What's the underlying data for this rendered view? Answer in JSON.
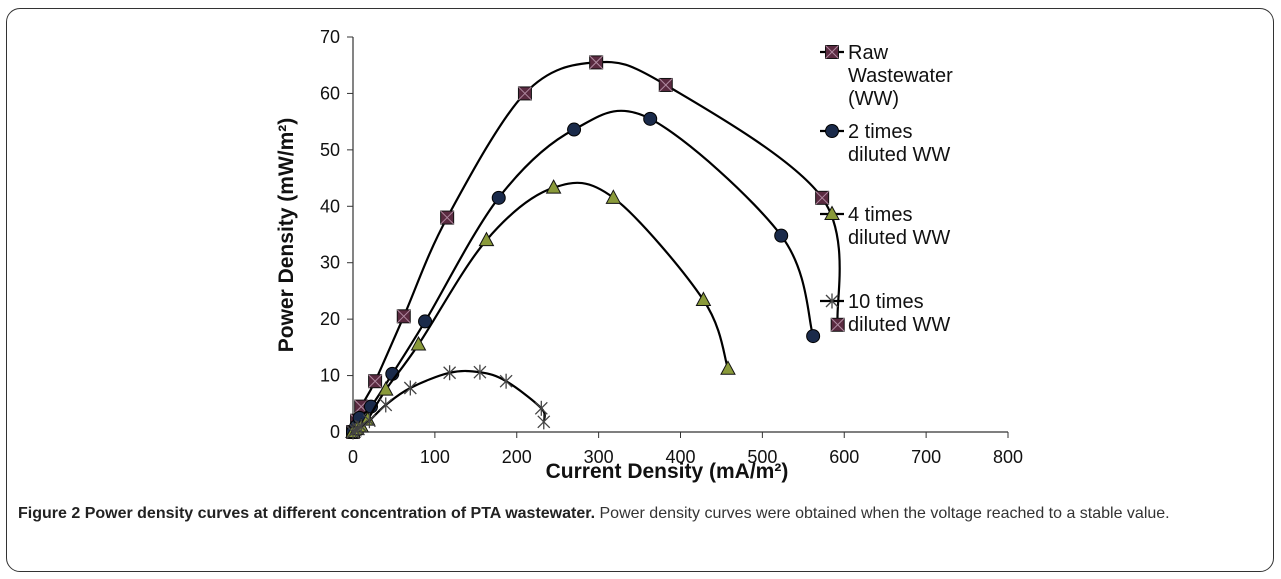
{
  "figure": {
    "caption_label": "Figure 2",
    "caption_title": "Power density curves at different concentration of PTA wastewater.",
    "caption_text": "Power density curves were obtained when the voltage reached to a stable value."
  },
  "chart_data": {
    "type": "line",
    "xlabel": "Current Density (mA/m²)",
    "ylabel": "Power Density (mW/m²)",
    "xlim": [
      0,
      800
    ],
    "ylim": [
      0,
      70
    ],
    "xticks": [
      0,
      100,
      200,
      300,
      400,
      500,
      600,
      700,
      800
    ],
    "yticks": [
      0,
      10,
      20,
      30,
      40,
      50,
      60,
      70
    ],
    "grid": false,
    "legend_position": "right",
    "series": [
      {
        "name": "Raw Wastewater (WW)",
        "legend_lines": [
          "Raw",
          "Wastewater",
          "(WW)"
        ],
        "marker": "square",
        "marker_color": "#5a2a40",
        "x": [
          0,
          5,
          10,
          27,
          62,
          115,
          210,
          297,
          382,
          573,
          592
        ],
        "y": [
          0,
          2,
          4.5,
          9,
          20.5,
          38,
          60,
          65.5,
          61.5,
          41.5,
          19
        ]
      },
      {
        "name": "2 times diluted WW",
        "legend_lines": [
          "2 times",
          "diluted WW"
        ],
        "marker": "circle",
        "marker_color": "#1a2a4a",
        "x": [
          0,
          4,
          8,
          22,
          48,
          88,
          178,
          270,
          363,
          523,
          562
        ],
        "y": [
          0,
          1,
          2.5,
          4.5,
          10.3,
          19.6,
          41.5,
          53.6,
          55.5,
          34.8,
          17
        ]
      },
      {
        "name": "4 times diluted WW",
        "legend_lines": [
          "4 times",
          "diluted WW"
        ],
        "marker": "triangle",
        "marker_color": "#8a9a3a",
        "x": [
          0,
          5,
          10,
          18,
          40,
          80,
          163,
          245,
          318,
          428,
          458
        ],
        "y": [
          0,
          0.5,
          1,
          2.2,
          7.5,
          15.5,
          34,
          43.3,
          41.5,
          23.4,
          11.2
        ]
      },
      {
        "name": "10 times diluted WW",
        "legend_lines": [
          "10 times",
          "diluted WW"
        ],
        "marker": "star",
        "marker_color": "#444444",
        "x": [
          0,
          3,
          6,
          10,
          20,
          40,
          70,
          118,
          155,
          187,
          230,
          233
        ],
        "y": [
          0,
          0.3,
          0.6,
          1,
          2,
          4.8,
          7.8,
          10.5,
          10.6,
          9,
          4.2,
          1.8
        ]
      }
    ]
  }
}
